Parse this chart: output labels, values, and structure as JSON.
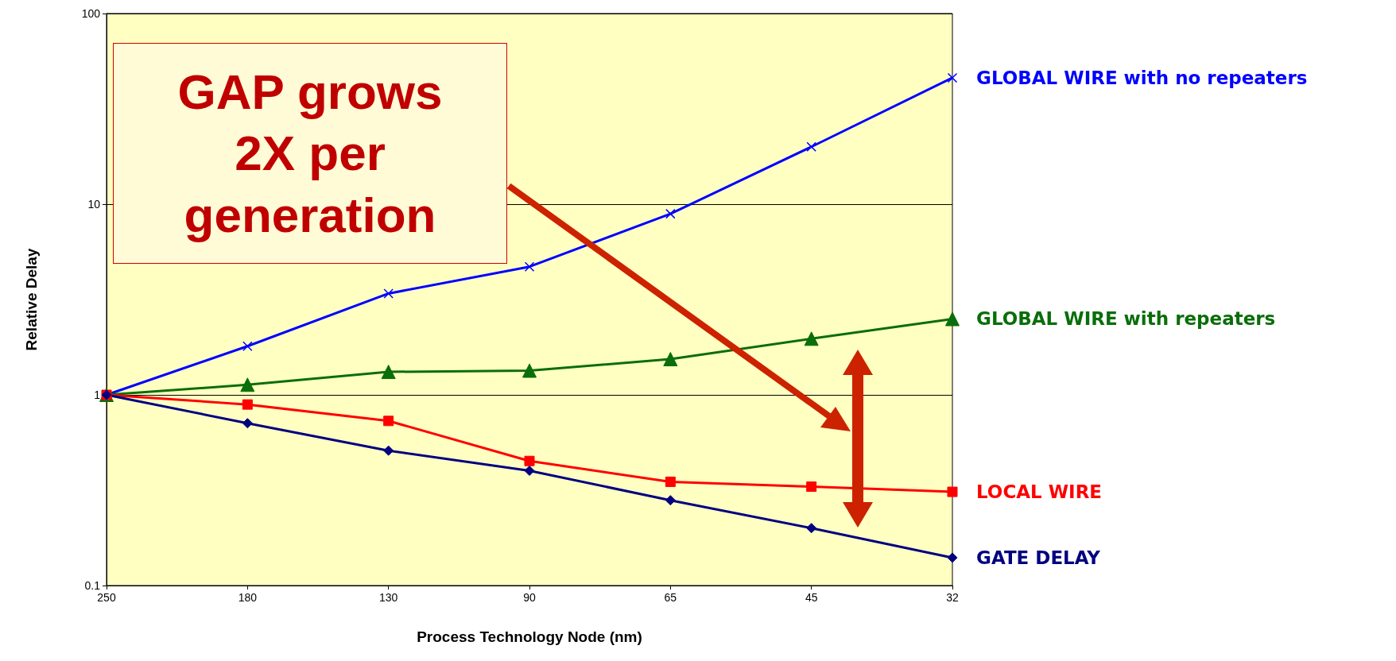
{
  "chart_data": {
    "type": "line",
    "xlabel": "Process Technology Node (nm)",
    "ylabel": "Relative Delay",
    "categories": [
      "250",
      "180",
      "130",
      "90",
      "65",
      "45",
      "32"
    ],
    "series": [
      {
        "name": "GLOBAL WIRE with no repeaters",
        "color": "#0000ff",
        "marker": "cross",
        "values": [
          1,
          1.8,
          3.4,
          4.7,
          8.9,
          20,
          46
        ]
      },
      {
        "name": "GLOBAL WIRE with repeaters",
        "color": "#0a6e0a",
        "marker": "triangle",
        "values": [
          1,
          1.13,
          1.32,
          1.34,
          1.54,
          1.97,
          2.5
        ]
      },
      {
        "name": "LOCAL WIRE",
        "color": "#ff0000",
        "marker": "square",
        "values": [
          1,
          0.89,
          0.73,
          0.45,
          0.35,
          0.33,
          0.31
        ]
      },
      {
        "name": "GATE DELAY",
        "color": "#000080",
        "marker": "diamond",
        "values": [
          1,
          0.71,
          0.51,
          0.4,
          0.28,
          0.2,
          0.14
        ]
      }
    ],
    "log": "y",
    "ylim": [
      0.1,
      100
    ],
    "yticks": [
      0.1,
      1,
      10,
      100
    ],
    "grid": "y",
    "annotations": [
      "GAP grows 2X per generation"
    ]
  }
}
